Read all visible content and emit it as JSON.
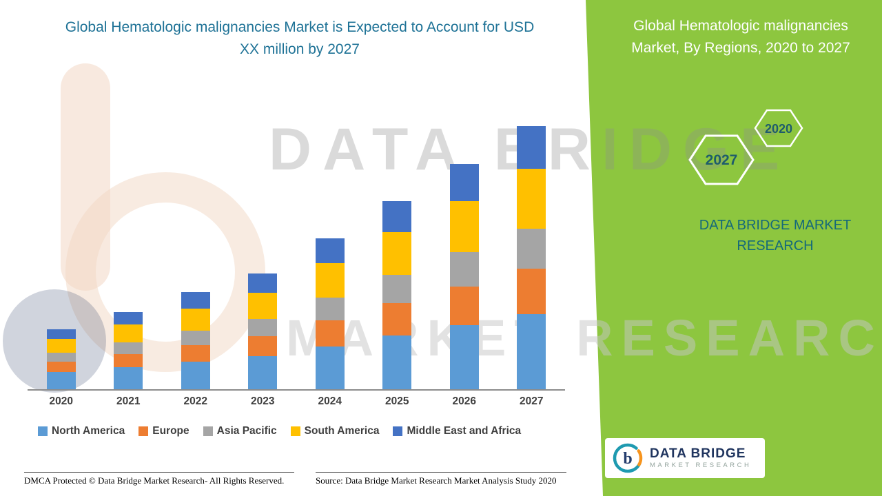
{
  "page": {
    "left_title": "Global Hematologic malignancies Market is Expected to Account for USD XX million by 2027"
  },
  "right_panel": {
    "title": "Global Hematologic malignancies Market, By Regions, 2020 to 2027",
    "hexagon_2027": "2027",
    "hexagon_2020": "2020",
    "brand_caption": "DATA BRIDGE MARKET RESEARCH",
    "accent_green": "#8DC63F"
  },
  "watermark": {
    "line1": "DATA BRIDGE",
    "line2": "MARKET RESEARCH"
  },
  "logo": {
    "title": "DATA BRIDGE",
    "subtitle": "MARKET RESEARCH",
    "mark": "b"
  },
  "footer": {
    "dmca": "DMCA Protected © Data Bridge Market Research- All Rights Reserved.",
    "source": "Source: Data Bridge Market Research Market Analysis Study 2020"
  },
  "chart_data": {
    "type": "bar",
    "stacked": true,
    "title": "Global Hematologic malignancies Market, By Regions, 2020 to 2027",
    "categories": [
      "2020",
      "2021",
      "2022",
      "2023",
      "2024",
      "2025",
      "2026",
      "2027"
    ],
    "series": [
      {
        "name": "North America",
        "color": "#5B9BD5",
        "values": [
          25,
          32,
          40,
          48,
          62,
          78,
          93,
          109
        ]
      },
      {
        "name": "Europe",
        "color": "#ED7D31",
        "values": [
          15,
          19,
          24,
          29,
          38,
          47,
          56,
          66
        ]
      },
      {
        "name": "Asia Pacific",
        "color": "#A5A5A5",
        "values": [
          13,
          17,
          21,
          25,
          33,
          41,
          50,
          58
        ]
      },
      {
        "name": "South America",
        "color": "#FFC000",
        "values": [
          20,
          26,
          32,
          38,
          50,
          62,
          74,
          87
        ]
      },
      {
        "name": "Middle East and Africa",
        "color": "#4472C4",
        "values": [
          14,
          18,
          24,
          28,
          36,
          45,
          54,
          62
        ]
      }
    ],
    "xlabel": "",
    "ylabel": "",
    "ylim": [
      0,
      400
    ],
    "grid": false,
    "legend_position": "bottom",
    "note": "No numeric axis shown in source; values are relative estimates (USD XX million)"
  }
}
